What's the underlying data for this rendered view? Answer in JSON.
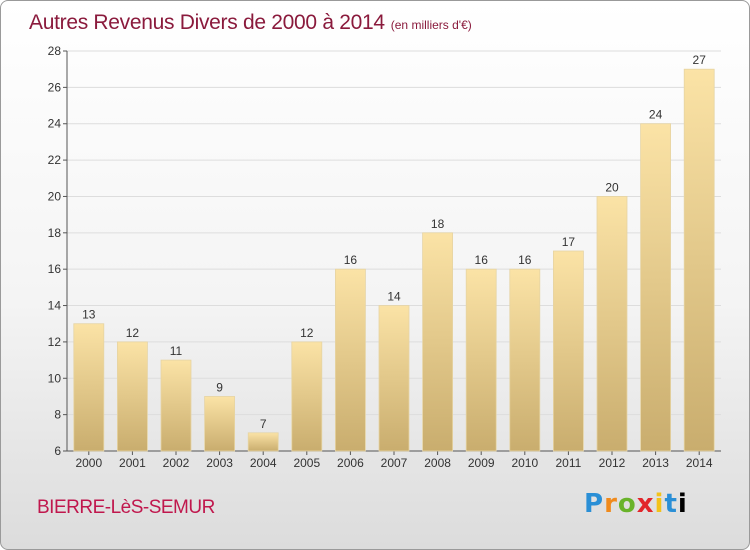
{
  "header": {
    "title": "Autres Revenus Divers de 2000 à 2014",
    "unit_note": "(en milliers d'€)"
  },
  "footer": {
    "place": "BIERRE-LèS-SEMUR",
    "logo_text": "Proxiti"
  },
  "colors": {
    "bar_top": "#fbe3a6",
    "bar_bottom": "#c9ad6e",
    "grid": "#dddddd",
    "title": "#8a1a3c",
    "place": "#c0174d"
  },
  "chart_data": {
    "type": "bar",
    "title": "Autres Revenus Divers de 2000 à 2014",
    "xlabel": "",
    "ylabel": "",
    "categories": [
      "2000",
      "2001",
      "2002",
      "2003",
      "2004",
      "2005",
      "2006",
      "2007",
      "2008",
      "2009",
      "2010",
      "2011",
      "2012",
      "2013",
      "2014"
    ],
    "values": [
      13,
      12,
      11,
      9,
      7,
      12,
      16,
      14,
      18,
      16,
      16,
      17,
      20,
      24,
      27
    ],
    "ylim": [
      6,
      28
    ],
    "yticks": [
      6,
      8,
      10,
      12,
      14,
      16,
      18,
      20,
      22,
      24,
      26,
      28
    ],
    "grid": true
  }
}
